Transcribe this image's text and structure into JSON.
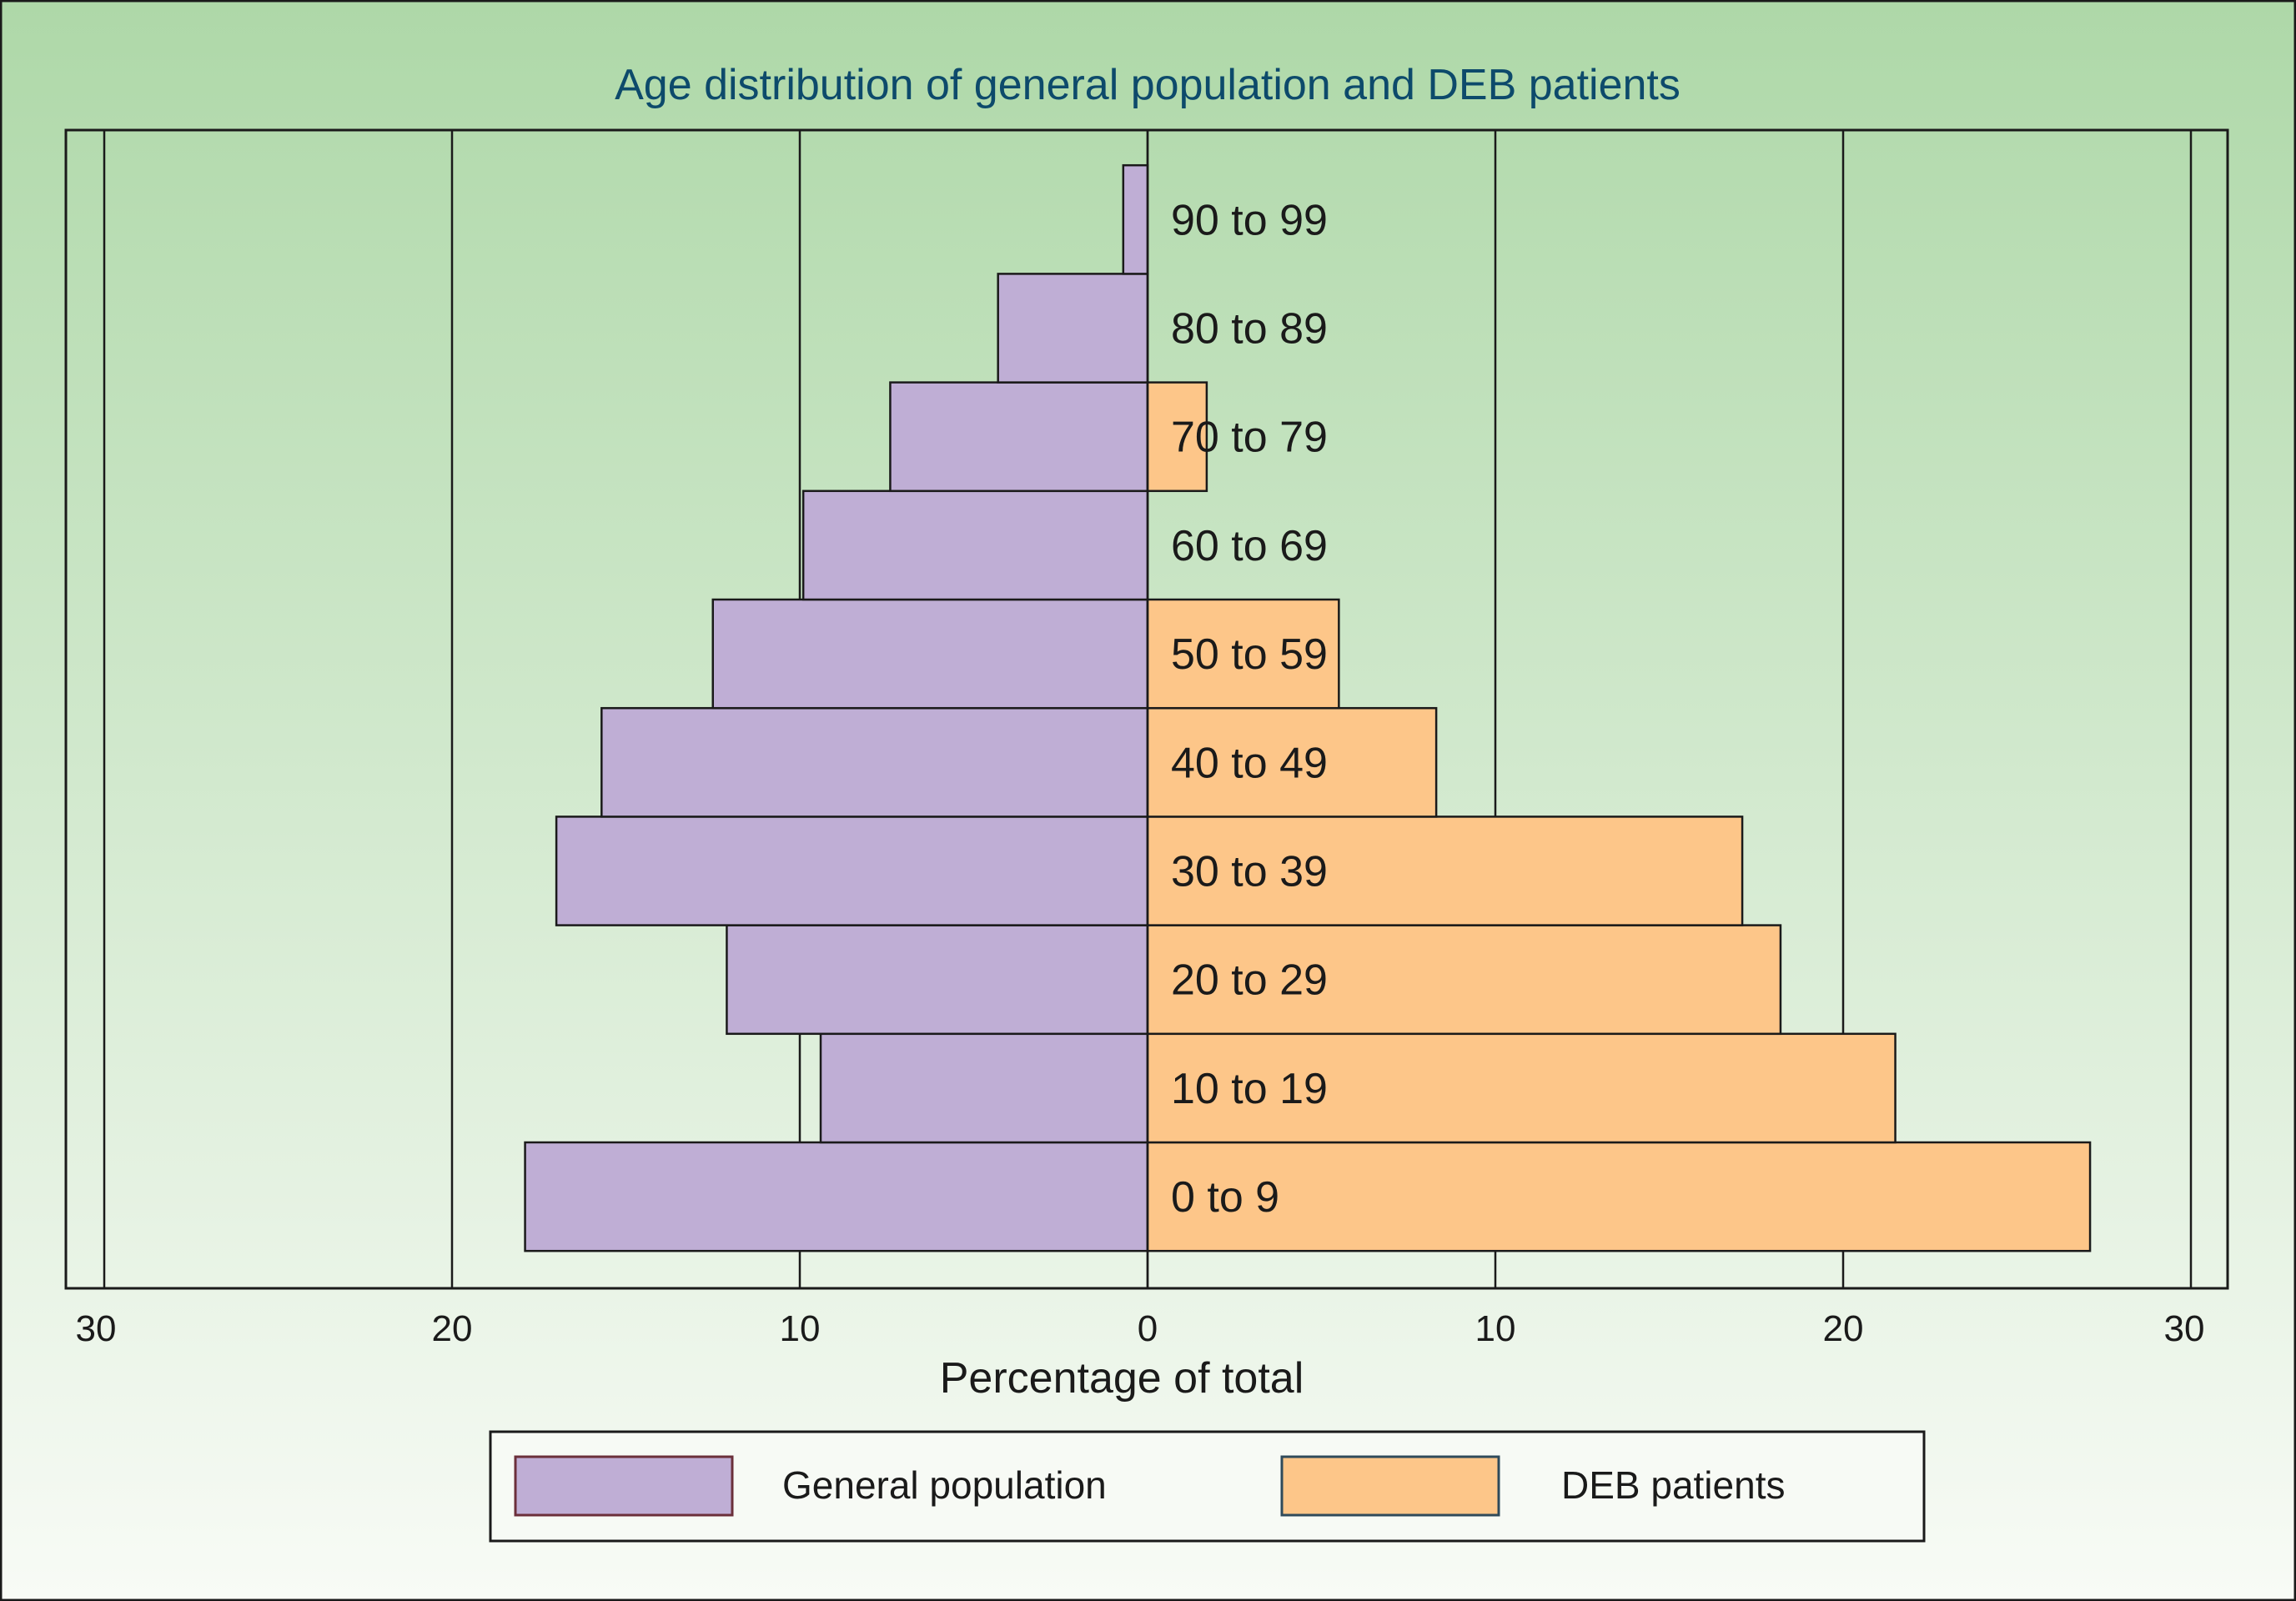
{
  "chart_data": {
    "type": "bar",
    "orientation": "horizontal",
    "layout": "population-pyramid",
    "title": "Age distribution of general population and DEB patients",
    "xlabel": "Percentage of total",
    "ylabel": "",
    "xlim": [
      -31,
      31
    ],
    "x_ticks": [
      -30,
      -20,
      -10,
      0,
      10,
      20,
      30
    ],
    "x_tick_labels": [
      "30",
      "20",
      "10",
      "0",
      "10",
      "20",
      "30"
    ],
    "grid": true,
    "legend_position": "bottom",
    "categories": [
      "0 to 9",
      "10 to 19",
      "20 to 29",
      "30 to 39",
      "40 to 49",
      "50 to 59",
      "60 to 69",
      "70 to 79",
      "80 to 89",
      "90 to 99"
    ],
    "series": [
      {
        "name": "General population",
        "side": "left",
        "color": "#bfaed5",
        "values": [
          17.9,
          9.4,
          12.1,
          17.0,
          15.7,
          12.5,
          9.9,
          7.4,
          4.3,
          0.7
        ]
      },
      {
        "name": "DEB patients",
        "side": "right",
        "color": "#fdc689",
        "values": [
          27.1,
          21.5,
          18.2,
          17.1,
          8.3,
          5.5,
          0.0,
          1.7,
          0.0,
          0.0
        ]
      }
    ]
  },
  "colors": {
    "background_top": "#aed8a8",
    "background_bottom": "#f8fbf6",
    "title": "#0d4a6b",
    "axis_text": "#1a1a1a",
    "frame": "#1a1a1a"
  }
}
